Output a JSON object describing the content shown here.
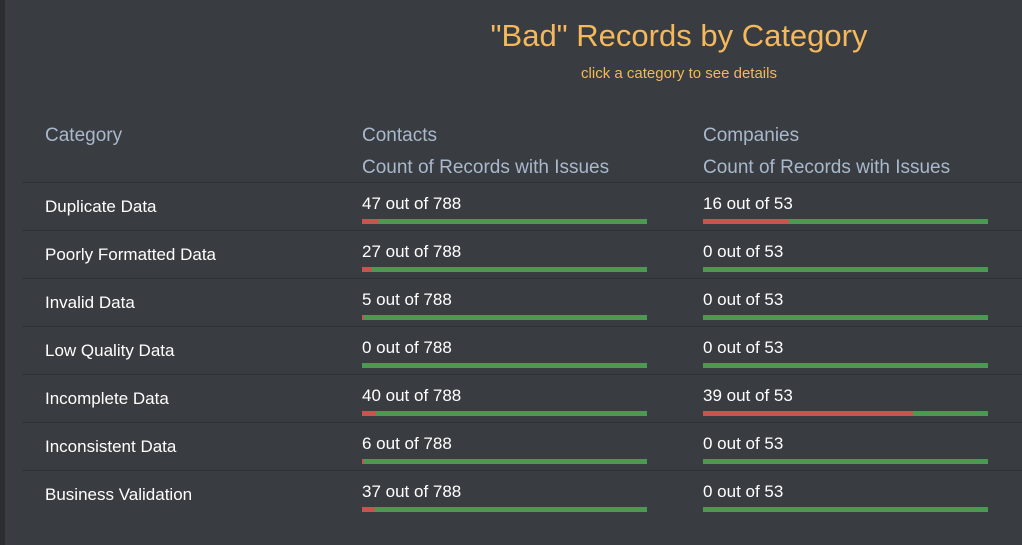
{
  "header": {
    "title": "\"Bad\" Records by Category",
    "subtitle": "click a category to see details"
  },
  "columns": {
    "category": "Category",
    "contacts": {
      "title": "Contacts",
      "subtitle": "Count of Records with Issues"
    },
    "companies": {
      "title": "Companies",
      "subtitle": "Count of Records with Issues"
    }
  },
  "colors": {
    "title": "#f5b85a",
    "header_text": "#a9b8cc",
    "bad": "#c85450",
    "good": "#4a9a52",
    "background": "#393c40"
  },
  "rows": [
    {
      "category": "Duplicate Data",
      "contacts": {
        "label": "47 out of 788",
        "bad": 47,
        "total": 788
      },
      "companies": {
        "label": "16 out of 53",
        "bad": 16,
        "total": 53
      }
    },
    {
      "category": "Poorly Formatted Data",
      "contacts": {
        "label": "27 out of 788",
        "bad": 27,
        "total": 788
      },
      "companies": {
        "label": "0 out of 53",
        "bad": 0,
        "total": 53
      }
    },
    {
      "category": "Invalid Data",
      "contacts": {
        "label": "5 out of 788",
        "bad": 5,
        "total": 788
      },
      "companies": {
        "label": "0 out of 53",
        "bad": 0,
        "total": 53
      }
    },
    {
      "category": "Low Quality Data",
      "contacts": {
        "label": "0 out of 788",
        "bad": 0,
        "total": 788
      },
      "companies": {
        "label": "0 out of 53",
        "bad": 0,
        "total": 53
      }
    },
    {
      "category": "Incomplete Data",
      "contacts": {
        "label": "40 out of 788",
        "bad": 40,
        "total": 788
      },
      "companies": {
        "label": "39 out of 53",
        "bad": 39,
        "total": 53
      }
    },
    {
      "category": "Inconsistent Data",
      "contacts": {
        "label": "6 out of 788",
        "bad": 6,
        "total": 788
      },
      "companies": {
        "label": "0 out of 53",
        "bad": 0,
        "total": 53
      }
    },
    {
      "category": "Business Validation",
      "contacts": {
        "label": "37 out of 788",
        "bad": 37,
        "total": 788
      },
      "companies": {
        "label": "0 out of 53",
        "bad": 0,
        "total": 53
      }
    }
  ]
}
